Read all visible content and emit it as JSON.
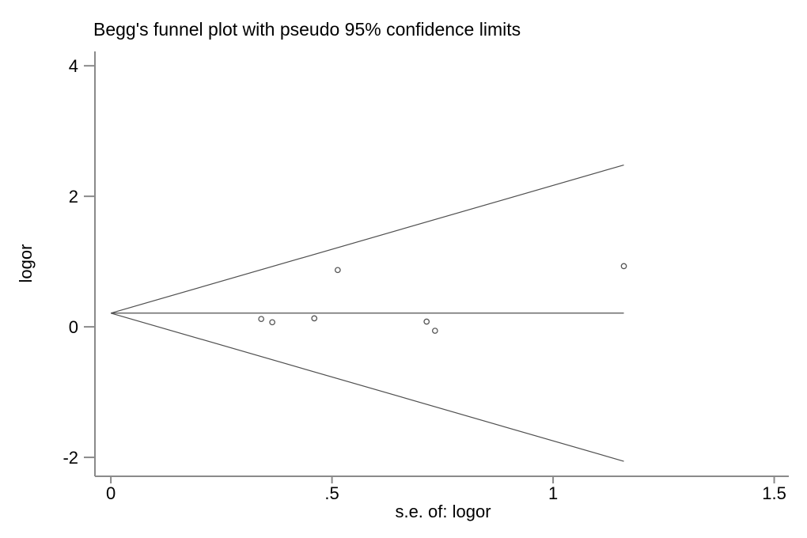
{
  "chart_data": {
    "type": "scatter",
    "title": "Begg's funnel plot with pseudo 95% confidence limits",
    "xlabel": "s.e. of: logor",
    "ylabel": "logor",
    "xlim": [
      -0.036,
      1.533
    ],
    "ylim": [
      -2.29,
      4.22
    ],
    "grid": false,
    "legend": "none",
    "x_ticks": [
      {
        "value": 0,
        "label": "0"
      },
      {
        "value": 0.5,
        "label": ".5"
      },
      {
        "value": 1,
        "label": "1"
      },
      {
        "value": 1.5,
        "label": "1.5"
      }
    ],
    "y_ticks": [
      {
        "value": 4,
        "label": "4"
      },
      {
        "value": 2,
        "label": "2"
      },
      {
        "value": 0,
        "label": "0"
      },
      {
        "value": -2,
        "label": "-2"
      }
    ],
    "points": [
      {
        "se": 0.34,
        "logor": 0.12
      },
      {
        "se": 0.365,
        "logor": 0.07
      },
      {
        "se": 0.46,
        "logor": 0.13
      },
      {
        "se": 0.513,
        "logor": 0.87
      },
      {
        "se": 0.714,
        "logor": 0.08
      },
      {
        "se": 0.733,
        "logor": -0.06
      },
      {
        "se": 1.16,
        "logor": 0.93
      }
    ],
    "pooled_logor": 0.21,
    "ci_multiplier": 1.96,
    "se_max": 1.16,
    "lines": [
      {
        "name": "pooled-estimate-line",
        "x1": 0,
        "y1": 0.21,
        "x2": 1.16,
        "y2": 0.21
      },
      {
        "name": "upper-95ci-limit-line",
        "x1": 0,
        "y1": 0.21,
        "x2": 1.16,
        "y2": 2.48
      },
      {
        "name": "lower-95ci-limit-line",
        "x1": 0,
        "y1": 0.21,
        "x2": 1.16,
        "y2": -2.06
      }
    ],
    "colors": {
      "background": "#ffffff",
      "axis": "#8a8a8a",
      "line": "#4f4f4f",
      "marker": "#555555",
      "text": "#000000"
    }
  }
}
